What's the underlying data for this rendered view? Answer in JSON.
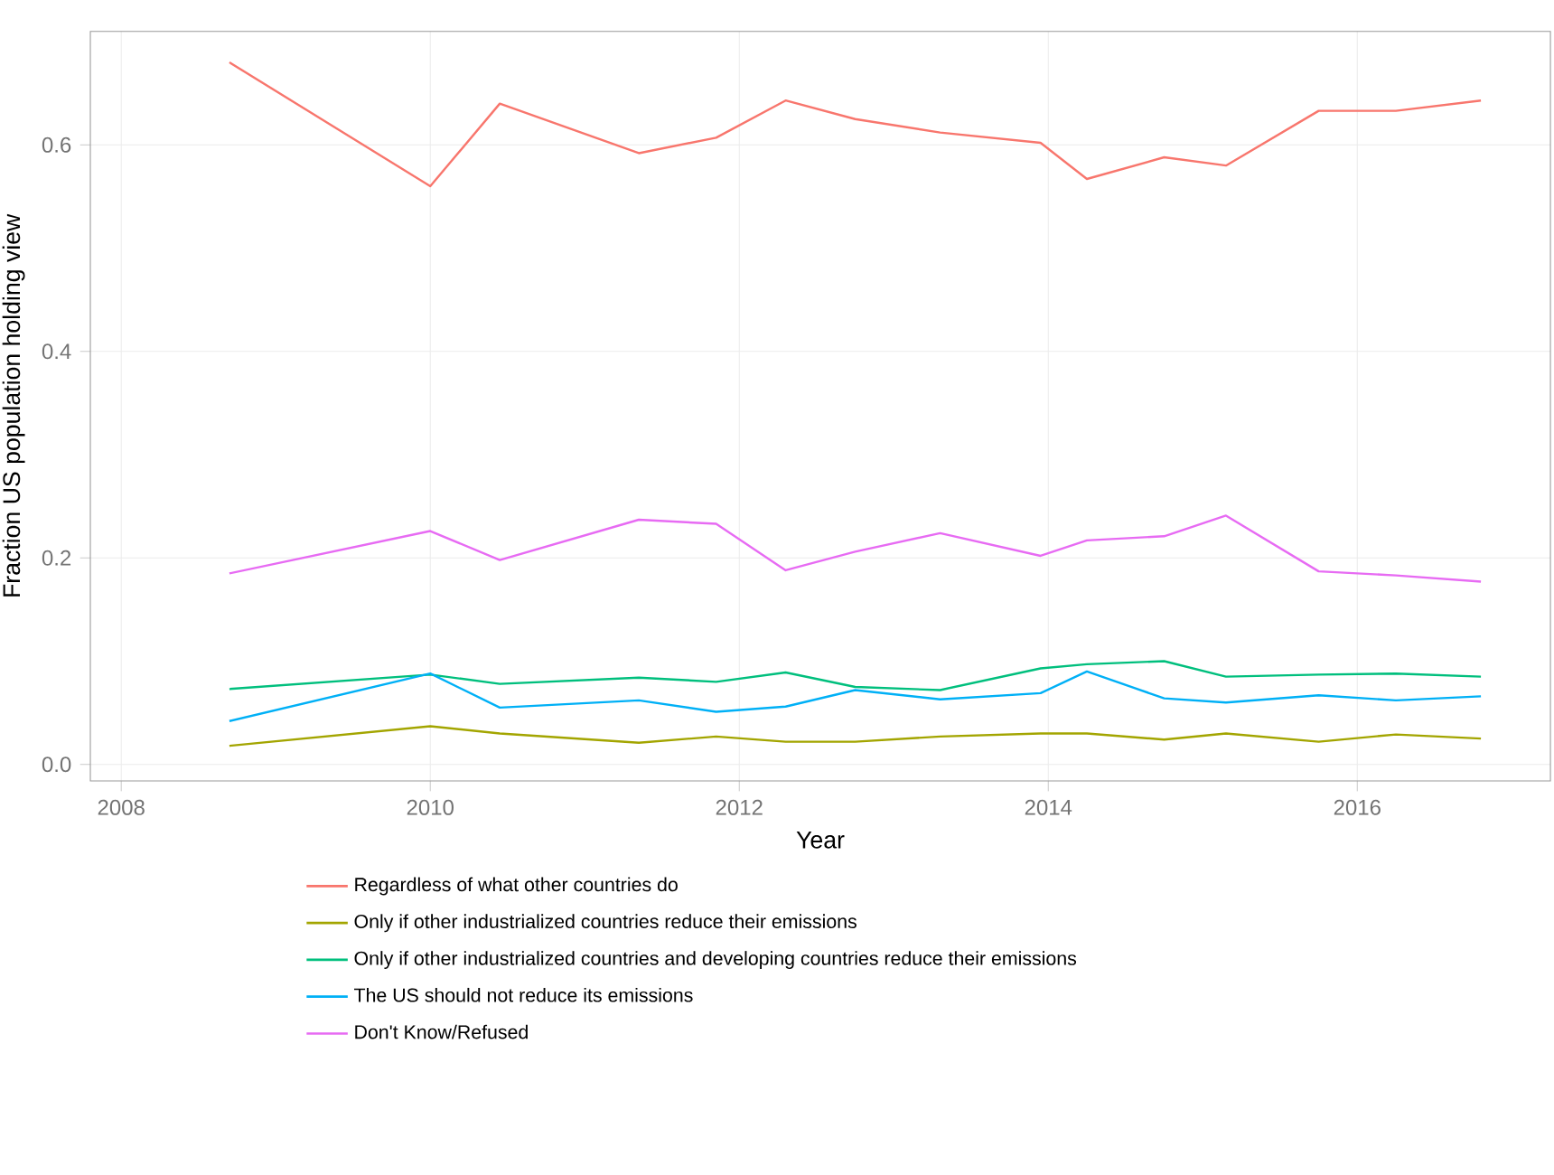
{
  "chart_data": {
    "type": "line",
    "xlabel": "Year",
    "ylabel": "Fraction US population holding view",
    "x": [
      2008.7,
      2010,
      2010.45,
      2011.35,
      2011.85,
      2012.3,
      2012.75,
      2013.3,
      2013.95,
      2014.25,
      2014.75,
      2015.15,
      2015.75,
      2016.25,
      2016.8
    ],
    "series": [
      {
        "name": "Regardless of what other countries do",
        "color": "#F8766D",
        "values": [
          0.68,
          0.56,
          0.64,
          0.592,
          0.607,
          0.643,
          0.625,
          0.612,
          0.602,
          0.567,
          0.588,
          0.58,
          0.633,
          0.633,
          0.643
        ]
      },
      {
        "name": "Only if other industrialized countries reduce their emissions",
        "color": "#A3A500",
        "values": [
          0.018,
          0.037,
          0.03,
          0.021,
          0.027,
          0.022,
          0.022,
          0.027,
          0.03,
          0.03,
          0.024,
          0.03,
          0.022,
          0.029,
          0.025
        ]
      },
      {
        "name": "Only if other industrialized countries and developing countries reduce their emissions",
        "color": "#00BF7D",
        "values": [
          0.073,
          0.087,
          0.078,
          0.084,
          0.08,
          0.089,
          0.075,
          0.072,
          0.093,
          0.097,
          0.1,
          0.085,
          0.087,
          0.088,
          0.085
        ]
      },
      {
        "name": "The US should not reduce its emissions",
        "color": "#00B0F6",
        "values": [
          0.042,
          0.088,
          0.055,
          0.062,
          0.051,
          0.056,
          0.072,
          0.063,
          0.069,
          0.09,
          0.064,
          0.06,
          0.067,
          0.062,
          0.066
        ]
      },
      {
        "name": "Don't Know/Refused",
        "color": "#E76BF3",
        "values": [
          0.185,
          0.226,
          0.198,
          0.237,
          0.233,
          0.188,
          0.206,
          0.224,
          0.202,
          0.217,
          0.221,
          0.241,
          0.187,
          0.183,
          0.177
        ]
      }
    ],
    "xlim": [
      2007.8,
      2017.25
    ],
    "ylim": [
      -0.016,
      0.71
    ],
    "xticks": [
      2008,
      2010,
      2012,
      2014,
      2016
    ],
    "yticks": [
      {
        "value": 0.0,
        "label": "0.0"
      },
      {
        "value": 0.2,
        "label": "0.2"
      },
      {
        "value": 0.4,
        "label": "0.4"
      },
      {
        "value": 0.6,
        "label": "0.6"
      }
    ],
    "grid": true,
    "legend": "bottom",
    "marker": "none",
    "line_style": "solid"
  }
}
